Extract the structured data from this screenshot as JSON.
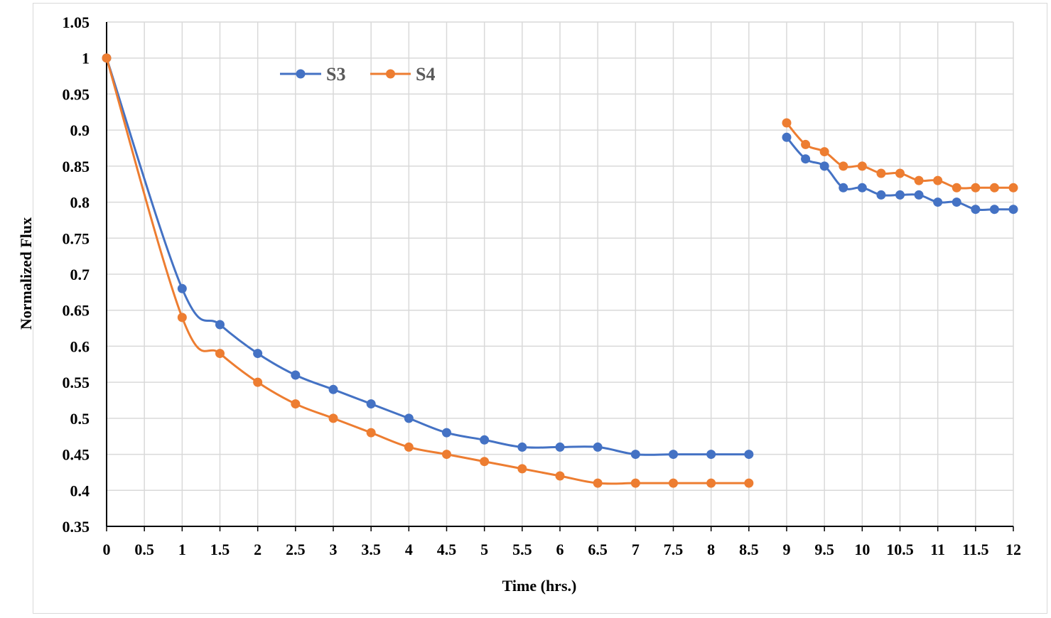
{
  "chart_data": {
    "type": "line",
    "title": "",
    "xlabel": "Time (hrs.)",
    "ylabel": "Normalized Flux",
    "xlim": [
      0,
      12
    ],
    "ylim": [
      0.35,
      1.05
    ],
    "grid": true,
    "legend_position": "top-left",
    "x_tick_labels": [
      "0",
      "0.5",
      "1",
      "1.5",
      "2",
      "2.5",
      "3",
      "3.5",
      "4",
      "4.5",
      "5",
      "5.5",
      "6",
      "6.5",
      "7",
      "7.5",
      "8",
      "8.5",
      "9",
      "9.5",
      "10",
      "10.5",
      "11",
      "11.5",
      "12"
    ],
    "y_tick_labels": [
      "0.35",
      "0.4",
      "0.45",
      "0.5",
      "0.55",
      "0.6",
      "0.65",
      "0.7",
      "0.75",
      "0.8",
      "0.85",
      "0.9",
      "0.95",
      "1",
      "1.05"
    ],
    "series": [
      {
        "name": "S3",
        "color": "#4472C4",
        "segments": [
          {
            "x": [
              0,
              1,
              1.5,
              2,
              2.5,
              3,
              3.5,
              4,
              4.5,
              5,
              5.5,
              6,
              6.5,
              7,
              7.5,
              8,
              8.5
            ],
            "y": [
              1.0,
              0.68,
              0.63,
              0.59,
              0.56,
              0.54,
              0.52,
              0.5,
              0.48,
              0.47,
              0.46,
              0.46,
              0.46,
              0.45,
              0.45,
              0.45,
              0.45
            ]
          },
          {
            "x": [
              9,
              9.25,
              9.5,
              9.75,
              10,
              10.25,
              10.5,
              10.75,
              11,
              11.25,
              11.5,
              11.75,
              12
            ],
            "y": [
              0.89,
              0.86,
              0.85,
              0.82,
              0.82,
              0.81,
              0.81,
              0.81,
              0.8,
              0.8,
              0.79,
              0.79,
              0.79
            ]
          }
        ]
      },
      {
        "name": "S4",
        "color": "#ED7D31",
        "segments": [
          {
            "x": [
              0,
              1,
              1.5,
              2,
              2.5,
              3,
              3.5,
              4,
              4.5,
              5,
              5.5,
              6,
              6.5,
              7,
              7.5,
              8,
              8.5
            ],
            "y": [
              1.0,
              0.64,
              0.59,
              0.55,
              0.52,
              0.5,
              0.48,
              0.46,
              0.45,
              0.44,
              0.43,
              0.42,
              0.41,
              0.41,
              0.41,
              0.41,
              0.41
            ]
          },
          {
            "x": [
              9,
              9.25,
              9.5,
              9.75,
              10,
              10.25,
              10.5,
              10.75,
              11,
              11.25,
              11.5,
              11.75,
              12
            ],
            "y": [
              0.91,
              0.88,
              0.87,
              0.85,
              0.85,
              0.84,
              0.84,
              0.83,
              0.83,
              0.82,
              0.82,
              0.82,
              0.82
            ]
          }
        ]
      }
    ]
  }
}
